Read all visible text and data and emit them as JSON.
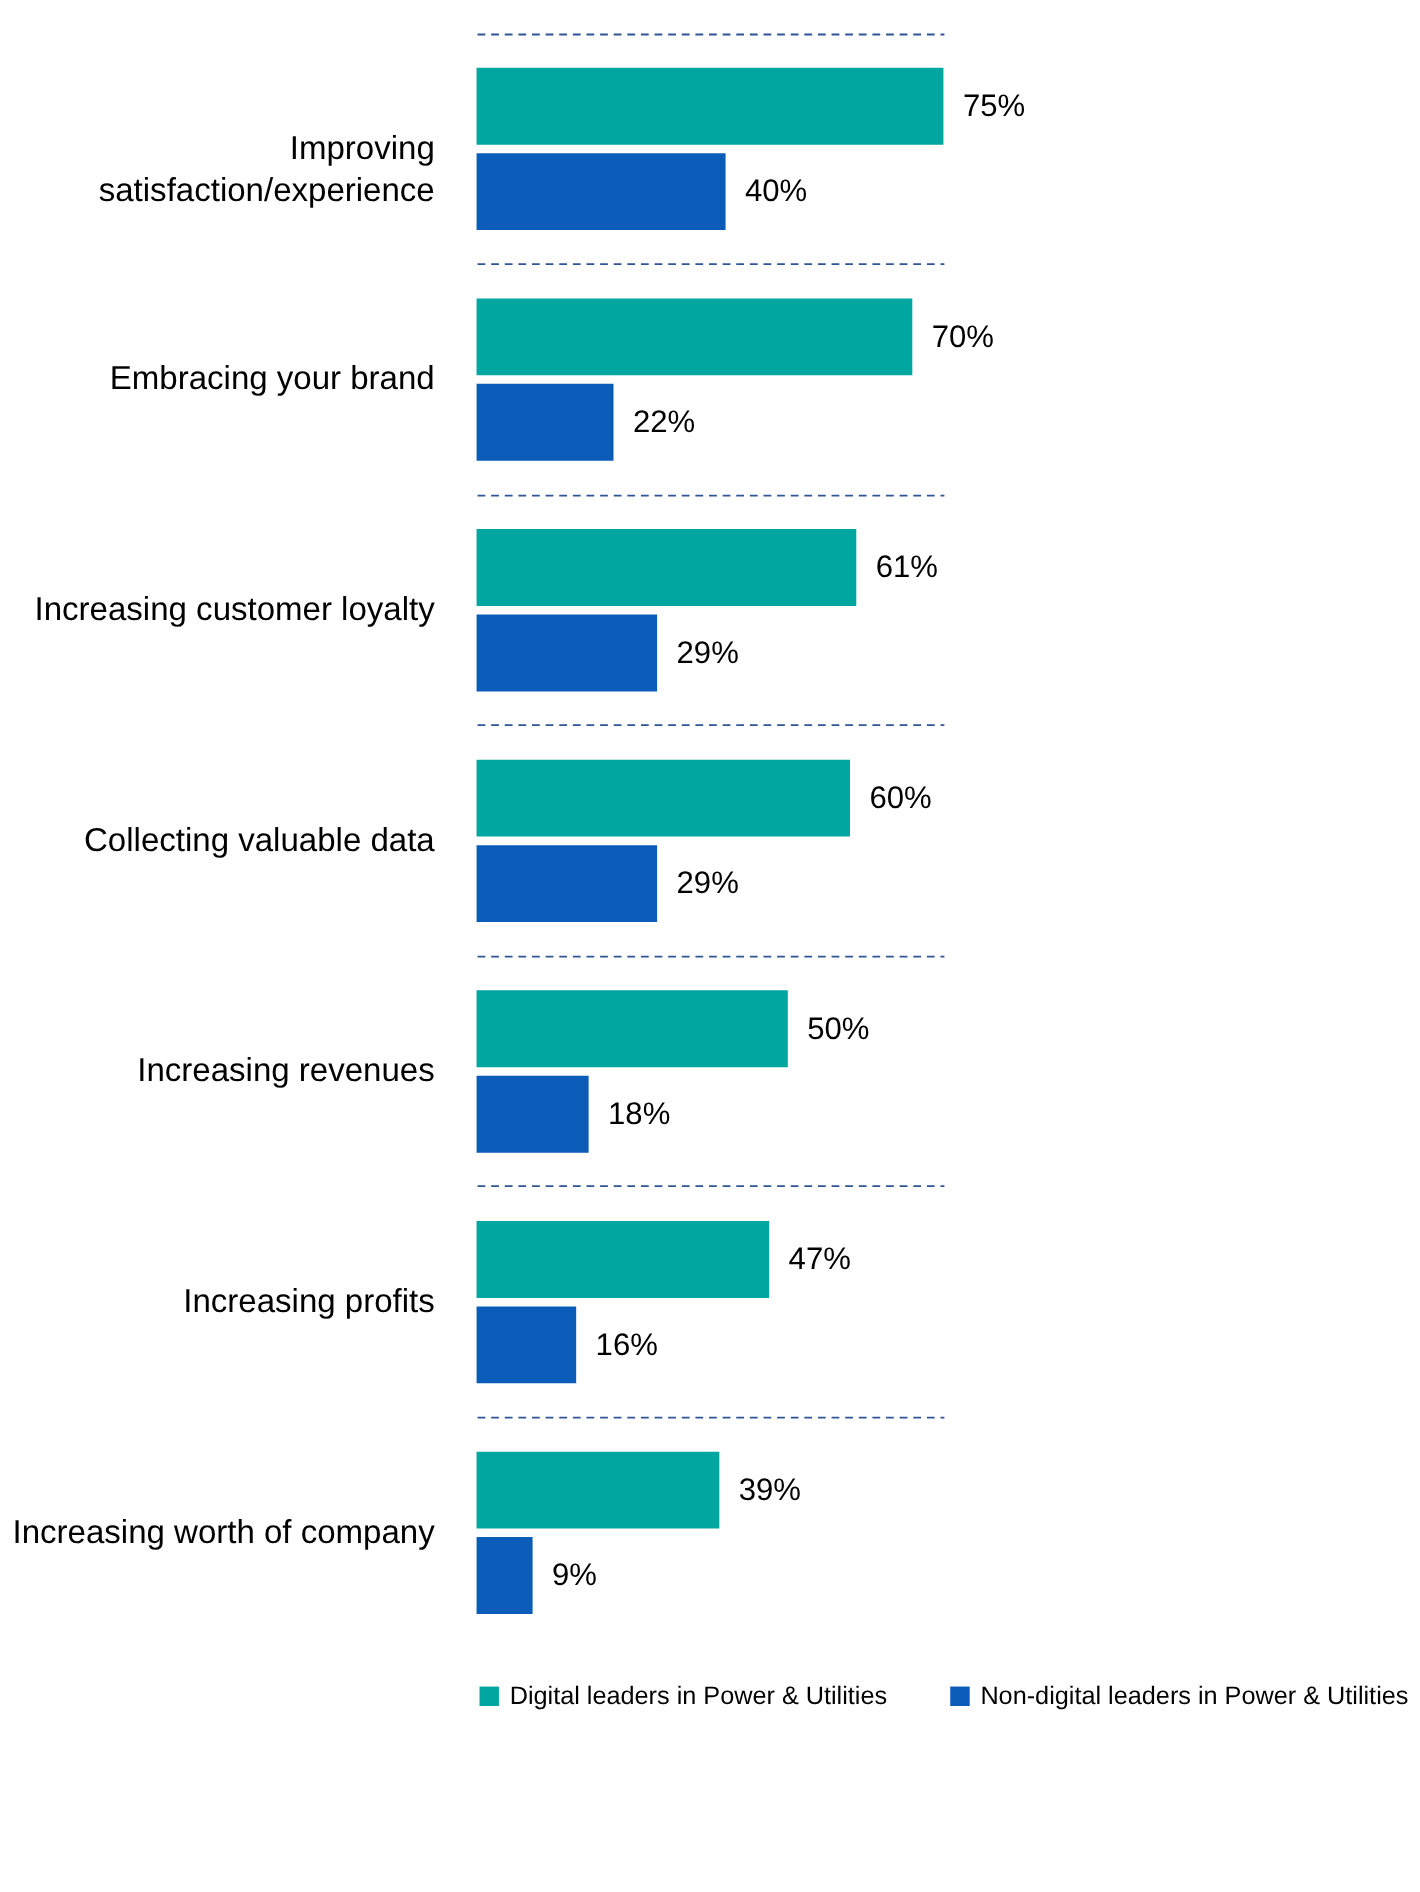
{
  "chart_data": {
    "type": "bar",
    "orientation": "horizontal",
    "categories": [
      "Improving satisfaction/experience",
      "Embracing your brand",
      "Increasing customer loyalty",
      "Collecting valuable data",
      "Increasing revenues",
      "Increasing profits",
      "Increasing worth of company"
    ],
    "series": [
      {
        "name": "Digital leaders in Power & Utilities",
        "color": "#00a6a0",
        "values": [
          75,
          70,
          61,
          60,
          50,
          47,
          39
        ],
        "value_labels": [
          "75%",
          "70%",
          "61%",
          "60%",
          "50%",
          "47%",
          "39%"
        ]
      },
      {
        "name": "Non-digital leaders in Power & Utilities",
        "color": "#0a5cb8",
        "values": [
          40,
          22,
          29,
          29,
          18,
          16,
          9
        ],
        "value_labels": [
          "40%",
          "22%",
          "29%",
          "29%",
          "18%",
          "16%",
          "9%"
        ]
      }
    ],
    "grid": "y",
    "line_style": "dashed",
    "legend": "bottom",
    "tick_labels": "y"
  }
}
